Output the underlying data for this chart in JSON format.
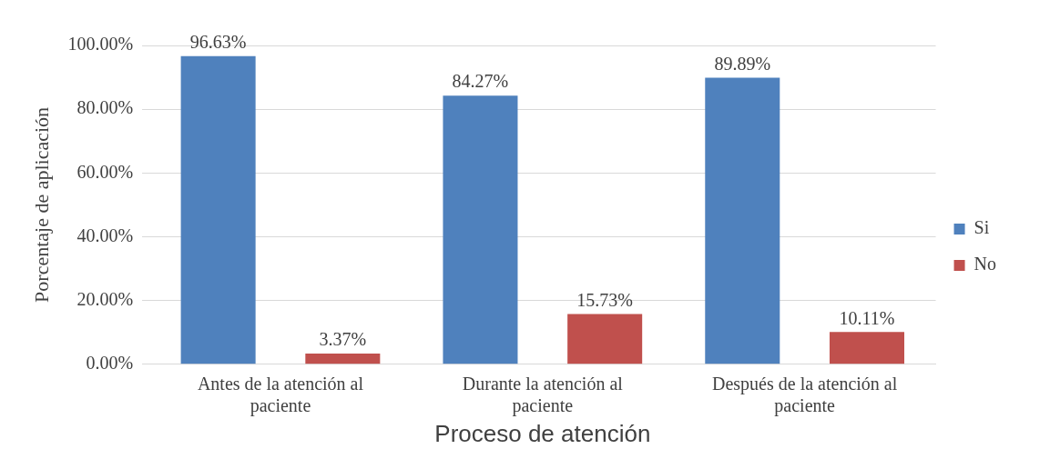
{
  "chart_data": {
    "type": "bar",
    "xlabel": "Proceso de atención",
    "ylabel": "Porcentaje de aplicación",
    "categories": [
      "Antes de la atención al paciente",
      "Durante la atención al paciente",
      "Después de la atención al paciente"
    ],
    "series": [
      {
        "name": "Si",
        "color": "#4f81bd",
        "values": [
          96.63,
          84.27,
          89.89
        ],
        "value_labels": [
          "96.63%",
          "84.27%",
          "89.89%"
        ]
      },
      {
        "name": "No",
        "color": "#c0504d",
        "values": [
          3.37,
          15.73,
          10.11
        ],
        "value_labels": [
          "3.37%",
          "15.73%",
          "10.11%"
        ]
      }
    ],
    "ylim": [
      0,
      100
    ],
    "yticks": [
      {
        "value": 0,
        "label": "0.00%"
      },
      {
        "value": 20,
        "label": "20.00%"
      },
      {
        "value": 40,
        "label": "40.00%"
      },
      {
        "value": 60,
        "label": "60.00%"
      },
      {
        "value": 80,
        "label": "80.00%"
      },
      {
        "value": 100,
        "label": "100.00%"
      }
    ],
    "grid": "y",
    "legend": "right"
  }
}
